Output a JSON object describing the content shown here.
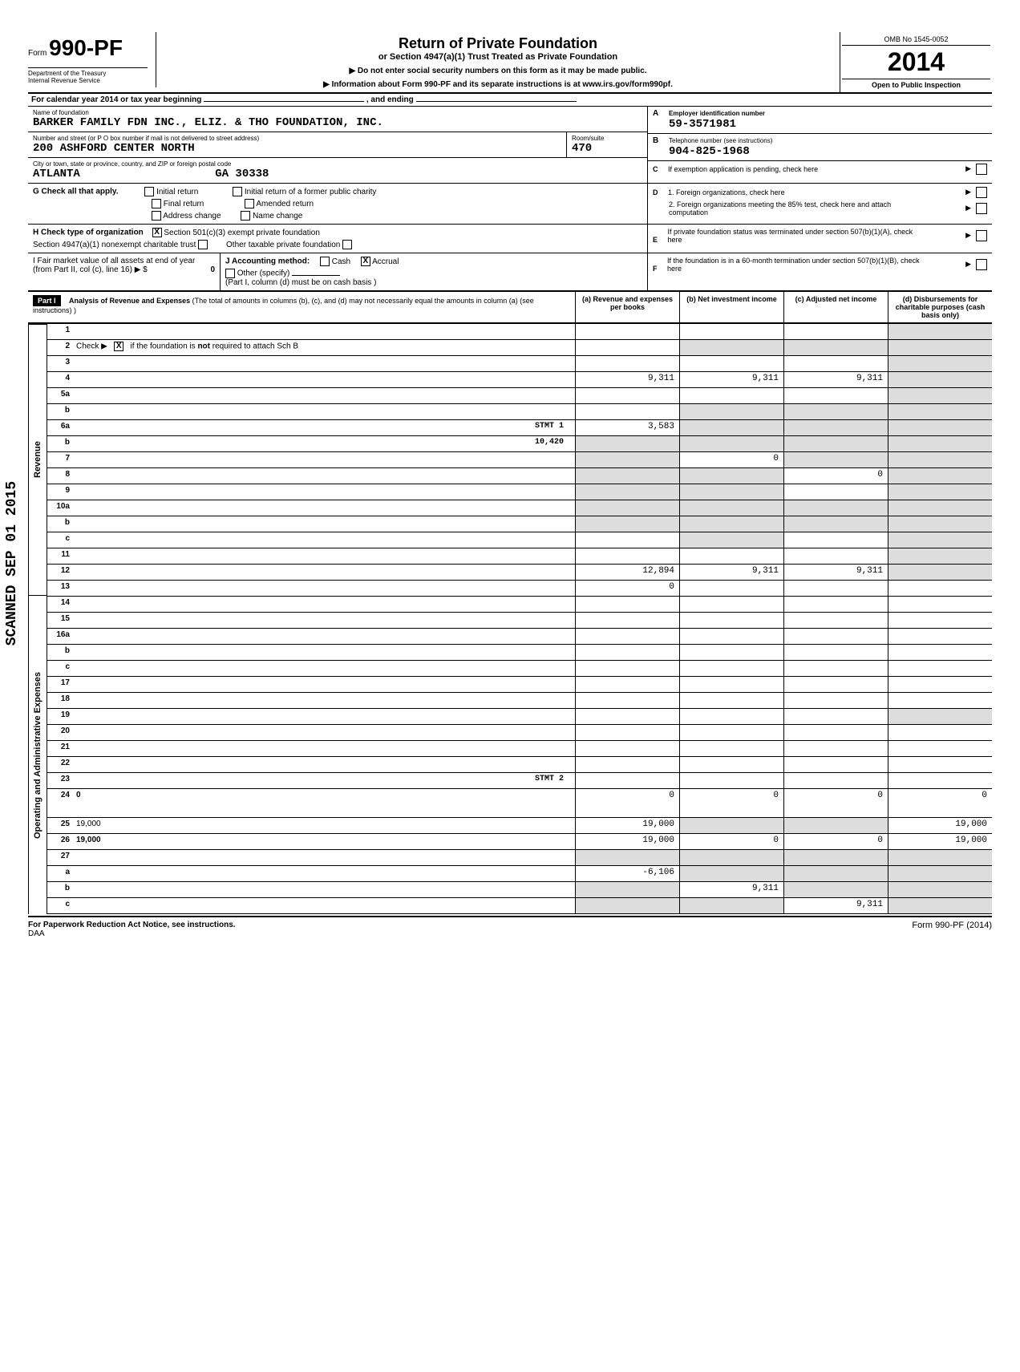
{
  "form": {
    "prefix": "Form",
    "number": "990-PF",
    "dept1": "Department of the Treasury",
    "dept2": "Internal Revenue Service",
    "title": "Return of Private Foundation",
    "subtitle": "or Section 4947(a)(1) Trust Treated as Private Foundation",
    "notice1": "▶ Do not enter social security numbers on this form as it may be made public.",
    "notice2": "▶ Information about Form 990-PF and its separate instructions is at www.irs.gov/form990pf.",
    "omb": "OMB No 1545-0052",
    "year": "2014",
    "inspection": "Open to Public Inspection"
  },
  "calyear": "For calendar year 2014 or tax year beginning",
  "calyear_end": ", and ending",
  "foundation": {
    "name_label": "Name of foundation",
    "name": "BARKER FAMILY FDN INC., ELIZ. & THO FOUNDATION, INC.",
    "addr_label": "Number and street (or P O  box number if mail is not delivered to street address)",
    "address": "200 ASHFORD CENTER NORTH",
    "room_label": "Room/suite",
    "room": "470",
    "city_label": "City or town, state or province, country, and ZIP or foreign postal code",
    "city": "ATLANTA",
    "state_zip": "GA  30338"
  },
  "ein": {
    "label_a": "A",
    "label": "Employer identification number",
    "value": "59-3571981"
  },
  "phone": {
    "label_b": "B",
    "label": "Telephone number (see instructions)",
    "value": "904-825-1968"
  },
  "section_c": {
    "letter": "C",
    "text": "If exemption application is pending, check here"
  },
  "section_d": {
    "letter": "D",
    "text1": "1.  Foreign organizations, check here",
    "text2": "2.  Foreign organizations meeting the 85% test, check here and attach computation"
  },
  "section_e": {
    "letter": "E",
    "text": "If private foundation status was terminated under section 507(b)(1)(A), check here"
  },
  "section_f": {
    "letter": "F",
    "text": "If the foundation is in a 60-month termination under section 507(b)(1)(B), check here"
  },
  "check_g": {
    "label": "G  Check all that apply.",
    "opts": [
      "Initial return",
      "Final return",
      "Address change",
      "Initial return of a former public charity",
      "Amended return",
      "Name change"
    ]
  },
  "check_h": {
    "label": "H  Check type of organization",
    "opt1": "Section 501(c)(3) exempt private foundation",
    "opt2": "Section 4947(a)(1) nonexempt charitable trust",
    "opt3": "Other taxable private foundation",
    "checked1": "X"
  },
  "line_i": {
    "label": "I   Fair market value of all assets at end of year (from Part II, col  (c), line 16) ▶  $",
    "value": "0"
  },
  "line_j": {
    "label": "J   Accounting method:",
    "cash": "Cash",
    "accrual": "Accrual",
    "accrual_checked": "X",
    "other": "Other (specify)",
    "note": "(Part I, column (d) must be on cash basis )"
  },
  "part1": {
    "label": "Part I",
    "title": "Analysis of Revenue and Expenses",
    "note": "(The total of amounts in columns (b), (c), and (d) may not necessarily equal the amounts in column (a) (see instructions) )",
    "col_a": "(a) Revenue and expenses per books",
    "col_b": "(b) Net investment income",
    "col_c": "(c) Adjusted net income",
    "col_d": "(d) Disbursements for charitable purposes (cash basis only)"
  },
  "sections": {
    "revenue": "Revenue",
    "opex": "Operating and Administrative Expenses"
  },
  "scanned": "SCANNED SEP 01 2015",
  "lines": [
    {
      "n": "1",
      "d": "",
      "a": "",
      "b": "",
      "c": "",
      "ds": true
    },
    {
      "n": "2",
      "d": "",
      "chk": "X",
      "a": "",
      "b": "",
      "c": "",
      "bs": true,
      "cs": true,
      "ds": true
    },
    {
      "n": "3",
      "d": "",
      "a": "",
      "b": "",
      "c": "",
      "ds": true
    },
    {
      "n": "4",
      "d": "",
      "a": "9,311",
      "b": "9,311",
      "c": "9,311",
      "ds": true
    },
    {
      "n": "5a",
      "d": "",
      "a": "",
      "b": "",
      "c": "",
      "ds": true
    },
    {
      "n": "b",
      "d": "",
      "a": "",
      "b": "",
      "c": "",
      "as": false,
      "bs": true,
      "cs": true,
      "ds": true
    },
    {
      "n": "6a",
      "d": "",
      "stmt": "STMT 1",
      "a": "3,583",
      "b": "",
      "c": "",
      "bs": true,
      "cs": true,
      "ds": true
    },
    {
      "n": "b",
      "d": "",
      "stmt": "10,420",
      "a": "",
      "b": "",
      "c": "",
      "as": true,
      "bs": true,
      "cs": true,
      "ds": true
    },
    {
      "n": "7",
      "d": "",
      "a": "",
      "b": "0",
      "c": "",
      "as": true,
      "cs": true,
      "ds": true
    },
    {
      "n": "8",
      "d": "",
      "a": "",
      "b": "",
      "c": "0",
      "as": true,
      "bs": true,
      "ds": true
    },
    {
      "n": "9",
      "d": "",
      "a": "",
      "b": "",
      "c": "",
      "as": true,
      "bs": true,
      "ds": true
    },
    {
      "n": "10a",
      "d": "",
      "a": "",
      "b": "",
      "c": "",
      "as": true,
      "bs": true,
      "cs": true,
      "ds": true
    },
    {
      "n": "b",
      "d": "",
      "a": "",
      "b": "",
      "c": "",
      "as": true,
      "bs": true,
      "cs": true,
      "ds": true
    },
    {
      "n": "c",
      "d": "",
      "a": "",
      "b": "",
      "c": "",
      "bs": true,
      "ds": true
    },
    {
      "n": "11",
      "d": "",
      "a": "",
      "b": "",
      "c": "",
      "ds": true
    },
    {
      "n": "12",
      "d": "",
      "bold": true,
      "a": "12,894",
      "b": "9,311",
      "c": "9,311",
      "ds": true
    },
    {
      "n": "13",
      "d": "",
      "a": "0",
      "b": "",
      "c": ""
    },
    {
      "n": "14",
      "d": "",
      "a": "",
      "b": "",
      "c": ""
    },
    {
      "n": "15",
      "d": "",
      "a": "",
      "b": "",
      "c": ""
    },
    {
      "n": "16a",
      "d": "",
      "a": "",
      "b": "",
      "c": ""
    },
    {
      "n": "b",
      "d": "",
      "a": "",
      "b": "",
      "c": ""
    },
    {
      "n": "c",
      "d": "",
      "a": "",
      "b": "",
      "c": ""
    },
    {
      "n": "17",
      "d": "",
      "a": "",
      "b": "",
      "c": ""
    },
    {
      "n": "18",
      "d": "",
      "a": "",
      "b": "",
      "c": ""
    },
    {
      "n": "19",
      "d": "",
      "a": "",
      "b": "",
      "c": "",
      "ds": true
    },
    {
      "n": "20",
      "d": "",
      "a": "",
      "b": "",
      "c": ""
    },
    {
      "n": "21",
      "d": "",
      "a": "",
      "b": "",
      "c": ""
    },
    {
      "n": "22",
      "d": "",
      "a": "",
      "b": "",
      "c": ""
    },
    {
      "n": "23",
      "d": "",
      "stmt": "STMT 2",
      "a": "",
      "b": "",
      "c": ""
    },
    {
      "n": "24",
      "d": "0",
      "bold": true,
      "a": "0",
      "b": "0",
      "c": "0"
    },
    {
      "n": "25",
      "d": "19,000",
      "a": "19,000",
      "b": "",
      "c": "",
      "bs": true,
      "cs": true
    },
    {
      "n": "26",
      "d": "19,000",
      "bold": true,
      "a": "19,000",
      "b": "0",
      "c": "0"
    },
    {
      "n": "27",
      "d": "",
      "a": "",
      "b": "",
      "c": "",
      "as": true,
      "bs": true,
      "cs": true,
      "ds": true
    },
    {
      "n": "a",
      "d": "",
      "bold": true,
      "a": "-6,106",
      "b": "",
      "c": "",
      "bs": true,
      "cs": true,
      "ds": true
    },
    {
      "n": "b",
      "d": "",
      "bold": true,
      "a": "",
      "b": "9,311",
      "c": "",
      "as": true,
      "cs": true,
      "ds": true
    },
    {
      "n": "c",
      "d": "",
      "bold": true,
      "a": "",
      "b": "",
      "c": "9,311",
      "as": true,
      "bs": true,
      "ds": true
    }
  ],
  "footer": {
    "left": "For Paperwork Reduction Act Notice, see instructions.",
    "daa": "DAA",
    "right": "Form 990-PF (2014)"
  }
}
